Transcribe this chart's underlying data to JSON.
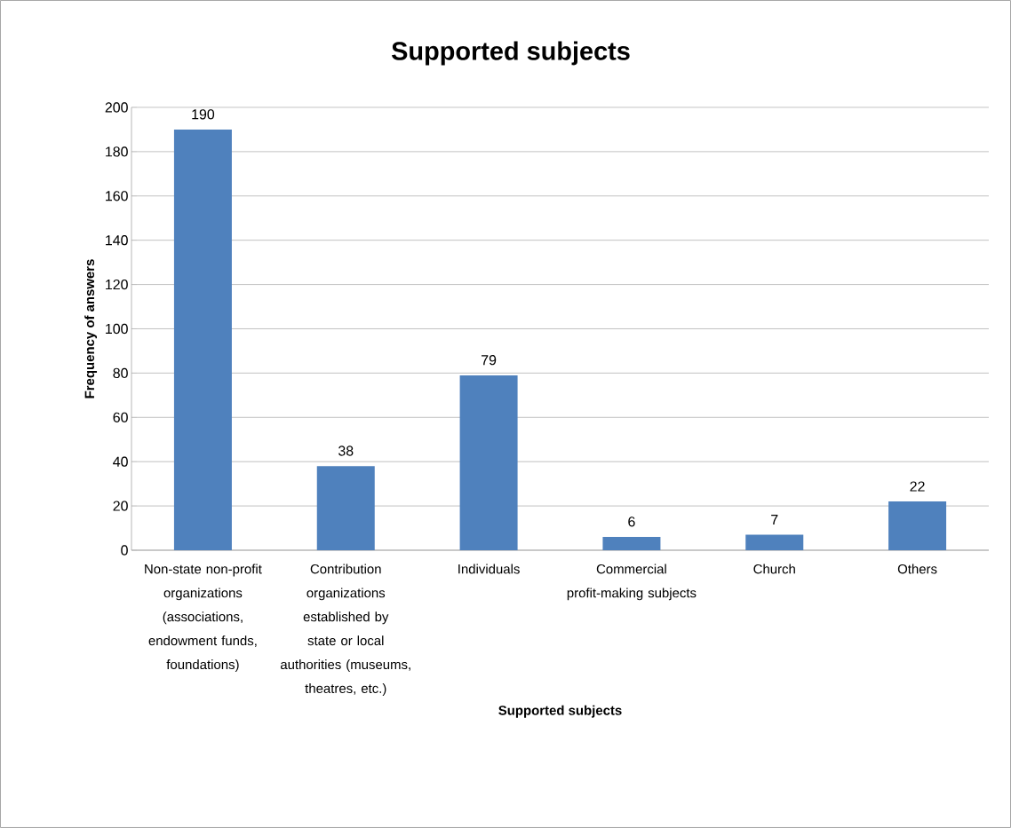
{
  "chart_data": {
    "type": "bar",
    "title": "Supported subjects",
    "xlabel": "Supported subjects",
    "ylabel": "Frequency of answers",
    "categories": [
      "Non-state non-profit organizations (associations, endowment funds, foundations)",
      "Contribution organizations established by state or local authorities (museums, theatres, etc.)",
      "Individuals",
      "Commercial profit-making subjects",
      "Church",
      "Others"
    ],
    "values": [
      190,
      38,
      79,
      6,
      7,
      22
    ],
    "color": "#4f81bd",
    "ylim": [
      0,
      200
    ],
    "yticks": [
      0,
      20,
      40,
      60,
      80,
      100,
      120,
      140,
      160,
      180,
      200
    ],
    "grid": "y",
    "data_labels": true
  }
}
